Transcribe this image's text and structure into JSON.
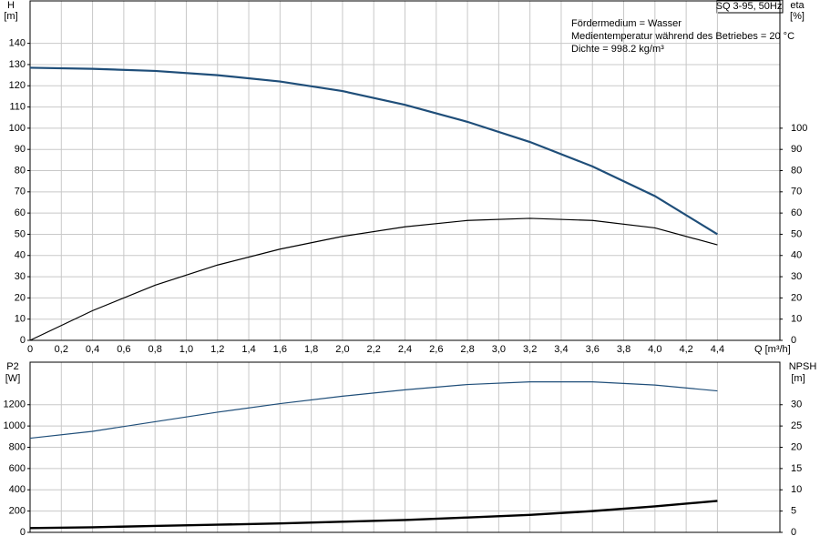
{
  "chart_data": [
    {
      "type": "line",
      "y_label": "H",
      "y_unit": "[m]",
      "y2_label": "eta",
      "y2_unit": "[%]",
      "x_label": "Q [m³/h]",
      "title": "SQ 3-95, 50Hz",
      "annotations": [
        "Fördermedium = Wasser",
        "Medientemperatur während des Betriebes = 20 °C",
        "Dichte = 998.2 kg/m³"
      ],
      "x": [
        0,
        0.4,
        0.8,
        1.2,
        1.6,
        2.0,
        2.4,
        2.8,
        3.2,
        3.6,
        4.0,
        4.4
      ],
      "series": [
        {
          "name": "H",
          "color": "#1f4e79",
          "values": [
            128.5,
            128,
            127,
            125,
            122,
            117.5,
            111,
            103,
            93.5,
            82,
            68,
            50
          ]
        },
        {
          "name": "eta",
          "color": "#000000",
          "axis": "y2",
          "values": [
            0,
            14,
            26,
            35.5,
            43,
            49,
            53.5,
            56.5,
            57.5,
            56.5,
            53,
            45
          ]
        }
      ],
      "xlim": [
        0,
        4.8
      ],
      "xticks": [
        0,
        {
          "value": 0.2,
          "label": "0,2"
        },
        {
          "value": 0.4,
          "label": "0,4"
        },
        {
          "value": 0.6,
          "label": "0,6"
        },
        {
          "value": 0.8,
          "label": "0,8"
        },
        {
          "value": 1.0,
          "label": "1,0"
        },
        {
          "value": 1.2,
          "label": "1,2"
        },
        {
          "value": 1.4,
          "label": "1,4"
        },
        {
          "value": 1.6,
          "label": "1,6"
        },
        {
          "value": 1.8,
          "label": "1,8"
        },
        {
          "value": 2.0,
          "label": "2,0"
        },
        {
          "value": 2.2,
          "label": "2,2"
        },
        {
          "value": 2.4,
          "label": "2,4"
        },
        {
          "value": 2.6,
          "label": "2,6"
        },
        {
          "value": 2.8,
          "label": "2,8"
        },
        {
          "value": 3.0,
          "label": "3,0"
        },
        {
          "value": 3.2,
          "label": "3,2"
        },
        {
          "value": 3.4,
          "label": "3,4"
        },
        {
          "value": 3.6,
          "label": "3,6"
        },
        {
          "value": 3.8,
          "label": "3,8"
        },
        {
          "value": 4.0,
          "label": "4,0"
        },
        {
          "value": 4.2,
          "label": "4,2"
        },
        {
          "value": 4.4,
          "label": "4,4"
        }
      ],
      "ylim": [
        0,
        160
      ],
      "yticks": [
        0,
        10,
        20,
        30,
        40,
        50,
        60,
        70,
        80,
        90,
        100,
        110,
        120,
        130,
        140
      ],
      "y2lim": [
        0,
        160
      ],
      "y2ticks": [
        0,
        10,
        20,
        30,
        40,
        50,
        60,
        70,
        80,
        90,
        100
      ],
      "grid": true
    },
    {
      "type": "line",
      "y_label": "P2",
      "y_unit": "[W]",
      "y2_label": "NPSH",
      "y2_unit": "[m]",
      "x": [
        0,
        0.4,
        0.8,
        1.2,
        1.6,
        2.0,
        2.4,
        2.8,
        3.2,
        3.6,
        4.0,
        4.4
      ],
      "series": [
        {
          "name": "P2",
          "color": "#1f4e79",
          "values": [
            885,
            950,
            1040,
            1130,
            1210,
            1280,
            1340,
            1390,
            1415,
            1415,
            1385,
            1330
          ]
        },
        {
          "name": "NPSH",
          "color": "#000000",
          "axis": "y2",
          "values": [
            1,
            1.2,
            1.5,
            1.8,
            2.1,
            2.5,
            2.9,
            3.5,
            4.1,
            5,
            6.1,
            7.4
          ]
        }
      ],
      "xlim": [
        0,
        4.8
      ],
      "ylim": [
        0,
        1600
      ],
      "yticks": [
        0,
        200,
        400,
        600,
        800,
        1000,
        1200
      ],
      "y2lim": [
        0,
        40
      ],
      "y2ticks": [
        0,
        5,
        10,
        15,
        20,
        25,
        30
      ],
      "grid": true
    }
  ]
}
